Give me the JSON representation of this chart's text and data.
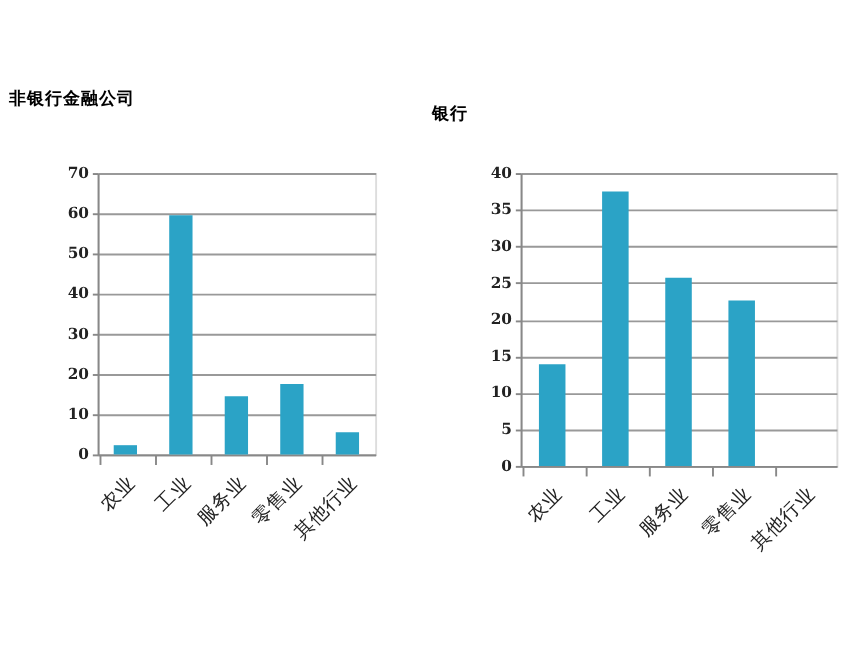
{
  "chart_data": [
    {
      "type": "bar",
      "title": "非银行金融公司",
      "categories": [
        "农业",
        "工业",
        "服务业",
        "零售业",
        "其他行业"
      ],
      "values": [
        2.3,
        59.5,
        14.5,
        17.5,
        5.5
      ],
      "color": "#2ba3c6",
      "ylim": [
        0,
        70
      ],
      "yticks": [
        0,
        10,
        20,
        30,
        40,
        50,
        60,
        70
      ],
      "grid": "y"
    },
    {
      "type": "bar",
      "title": "银行",
      "categories": [
        "农业",
        "工业",
        "服务业",
        "零售业",
        "其他行业"
      ],
      "values": [
        13.9,
        37.5,
        25.7,
        22.6,
        0
      ],
      "color": "#2ba3c6",
      "ylim": [
        0,
        40
      ],
      "yticks": [
        0,
        5,
        10,
        15,
        20,
        25,
        30,
        35,
        40
      ],
      "grid": "y"
    }
  ]
}
